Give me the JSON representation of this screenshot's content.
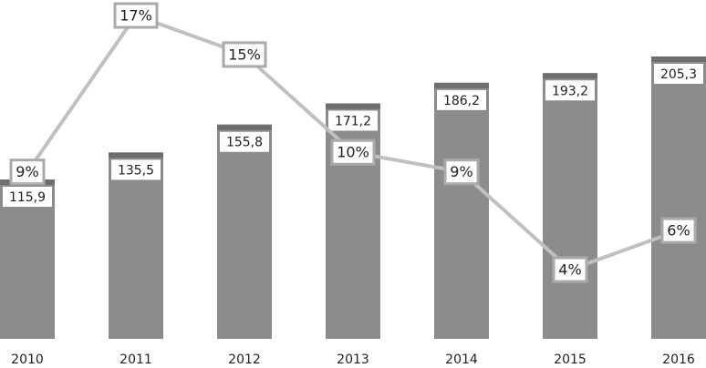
{
  "chart_data": {
    "type": "bar",
    "categories": [
      "2010",
      "2011",
      "2012",
      "2013",
      "2014",
      "2015",
      "2016"
    ],
    "series": [
      {
        "type": "bar",
        "color": "#8c8c8c",
        "cap_color": "#6e6e6e",
        "values": [
          115.9,
          135.5,
          155.8,
          171.2,
          186.2,
          193.2,
          205.3
        ],
        "value_labels": [
          "115,9",
          "135,5",
          "155,8",
          "171,2",
          "186,2",
          "193,2",
          "205,3"
        ]
      },
      {
        "type": "line",
        "axis": "y2",
        "color": "#c0c0c0",
        "values": [
          9,
          17,
          15,
          10,
          9,
          4,
          6
        ],
        "value_labels": [
          "9%",
          "17%",
          "15%",
          "10%",
          "9%",
          "4%",
          "6%"
        ]
      }
    ]
  }
}
